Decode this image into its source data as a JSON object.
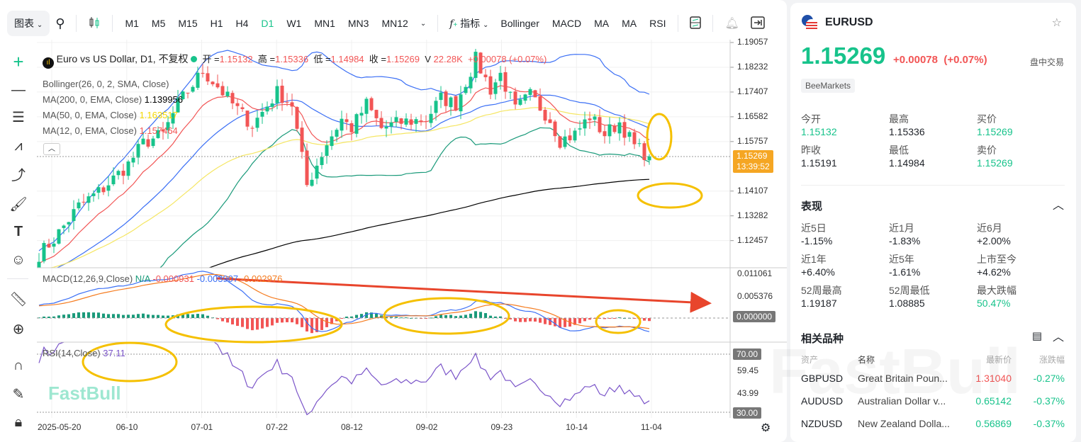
{
  "toolbar": {
    "chart_label": "图表",
    "timeframes": [
      "M1",
      "M5",
      "M15",
      "H1",
      "H4",
      "D1",
      "W1",
      "MN1",
      "MN3",
      "MN12"
    ],
    "active_timeframe": "D1",
    "indicators_label": "指标",
    "indicator_shortcuts": [
      "Bollinger",
      "MACD",
      "MA",
      "MA",
      "RSI"
    ]
  },
  "legend": {
    "title": "Euro vs US Dollar, D1, 不复权",
    "open_label": "开 =",
    "open": "1.15132",
    "high_label": "高 =",
    "high": "1.15336",
    "low_label": "低 =",
    "low": "1.14984",
    "close_label": "收 =",
    "close": "1.15269",
    "volume_label": "V",
    "volume": "22.28K",
    "change": "+0.00078 (+0.07%)",
    "bollinger": "Bollinger(26, 0, 2, SMA, Close)",
    "ma200_label": "MA(200, 0, EMA, Close)",
    "ma200": "1.139956",
    "ma50_label": "MA(50, 0, EMA, Close)",
    "ma50": "1.163517",
    "ma12_label": "MA(12, 0, EMA, Close)",
    "ma12": "1.157464",
    "macd_label": "MACD(12,26,9,Close)",
    "macd_na": "N/A",
    "macd_hist": "-0.000931",
    "macd_line": "-0.003907",
    "macd_signal": "-0.002976",
    "rsi_label": "RSI(14,Close)",
    "rsi": "37.11"
  },
  "price_axis": [
    "1.19057",
    "1.18232",
    "1.17407",
    "1.16582",
    "1.15757",
    "1.14107",
    "1.13282",
    "1.12457"
  ],
  "last_price_badge": {
    "price": "1.15269",
    "countdown": "13:39:52"
  },
  "macd_axis": [
    "0.011061",
    "0.005376"
  ],
  "macd_zero_badge": "0.000000",
  "rsi_axis": [
    "59.45",
    "43.99"
  ],
  "rsi_badges": [
    "70.00",
    "30.00"
  ],
  "date_axis": [
    "2025-05-20",
    "06-10",
    "07-01",
    "07-22",
    "08-12",
    "09-02",
    "09-23",
    "10-14",
    "11-04"
  ],
  "watermark": "FastBull",
  "colors": {
    "up": "#17c38b",
    "down": "#f25555",
    "accent": "#17c38b",
    "last_price": "#f5a623",
    "ma12": "#f25555",
    "ma50": "#f5e663",
    "ma200": "#000000",
    "boll_upper": "#3b6ff5",
    "boll_lower": "#1a9a7a",
    "annotation": "#f5c000"
  },
  "series": {
    "first_date": "2025-05-15",
    "last_date": "2025-11-04",
    "price_path": [
      [
        "2025-05-15",
        1.12
      ],
      [
        "2025-05-20",
        1.125
      ],
      [
        "2025-05-27",
        1.136
      ],
      [
        "2025-06-03",
        1.142
      ],
      [
        "2025-06-10",
        1.15
      ],
      [
        "2025-06-13",
        1.157
      ],
      [
        "2025-06-19",
        1.16
      ],
      [
        "2025-06-24",
        1.17
      ],
      [
        "2025-07-01",
        1.181
      ],
      [
        "2025-07-04",
        1.176
      ],
      [
        "2025-07-09",
        1.17
      ],
      [
        "2025-07-15",
        1.163
      ],
      [
        "2025-07-22",
        1.174
      ],
      [
        "2025-07-25",
        1.17
      ],
      [
        "2025-07-30",
        1.143
      ],
      [
        "2025-08-01",
        1.15
      ],
      [
        "2025-08-05",
        1.157
      ],
      [
        "2025-08-08",
        1.165
      ],
      [
        "2025-08-12",
        1.162
      ],
      [
        "2025-08-15",
        1.17
      ],
      [
        "2025-08-20",
        1.162
      ],
      [
        "2025-08-26",
        1.164
      ],
      [
        "2025-09-02",
        1.165
      ],
      [
        "2025-09-05",
        1.172
      ],
      [
        "2025-09-10",
        1.17
      ],
      [
        "2025-09-16",
        1.185
      ],
      [
        "2025-09-19",
        1.175
      ],
      [
        "2025-09-23",
        1.18
      ],
      [
        "2025-09-26",
        1.168
      ],
      [
        "2025-10-01",
        1.173
      ],
      [
        "2025-10-07",
        1.165
      ],
      [
        "2025-10-09",
        1.158
      ],
      [
        "2025-10-14",
        1.16
      ],
      [
        "2025-10-17",
        1.166
      ],
      [
        "2025-10-22",
        1.16
      ],
      [
        "2025-10-27",
        1.164
      ],
      [
        "2025-10-30",
        1.156
      ],
      [
        "2025-11-04",
        1.15269
      ]
    ],
    "last_bar": {
      "open": 1.15132,
      "high": 1.15336,
      "low": 1.14984,
      "close": 1.15269
    }
  },
  "quote": {
    "symbol": "EURUSD",
    "price": "1.15269",
    "change": "+0.00078",
    "change_pct": "(+0.07%)",
    "session": "盘中交易",
    "broker": "BeeMarkets",
    "stats": [
      {
        "label": "今开",
        "value": "1.15132",
        "color": "green"
      },
      {
        "label": "最高",
        "value": "1.15336",
        "color": "default"
      },
      {
        "label": "买价",
        "value": "1.15269",
        "color": "green"
      },
      {
        "label": "昨收",
        "value": "1.15191",
        "color": "default"
      },
      {
        "label": "最低",
        "value": "1.14984",
        "color": "default"
      },
      {
        "label": "卖价",
        "value": "1.15269",
        "color": "green"
      }
    ]
  },
  "performance": {
    "title": "表现",
    "items": [
      {
        "label": "近5日",
        "value": "-1.15%",
        "color": "default"
      },
      {
        "label": "近1月",
        "value": "-1.83%",
        "color": "default"
      },
      {
        "label": "近6月",
        "value": "+2.00%",
        "color": "default"
      },
      {
        "label": "近1年",
        "value": "+6.40%",
        "color": "default"
      },
      {
        "label": "近5年",
        "value": "-1.61%",
        "color": "default"
      },
      {
        "label": "上市至今",
        "value": "+4.62%",
        "color": "default"
      },
      {
        "label": "52周最高",
        "value": "1.19187",
        "color": "default"
      },
      {
        "label": "52周最低",
        "value": "1.08885",
        "color": "default"
      },
      {
        "label": "最大跌幅",
        "value": "50.47%",
        "color": "green"
      }
    ]
  },
  "related": {
    "title": "相关品种",
    "headers": [
      "资产",
      "名称",
      "最新价",
      "涨跌幅"
    ],
    "rows": [
      {
        "asset": "GBPUSD",
        "name": "Great Britain Poun...",
        "price": "1.31040",
        "change": "-0.27%",
        "price_color": "red"
      },
      {
        "asset": "AUDUSD",
        "name": "Australian Dollar v...",
        "price": "0.65142",
        "change": "-0.37%",
        "price_color": "green"
      },
      {
        "asset": "NZDUSD",
        "name": "New Zealand Dolla...",
        "price": "0.56869",
        "change": "-0.37%",
        "price_color": "green"
      }
    ]
  }
}
